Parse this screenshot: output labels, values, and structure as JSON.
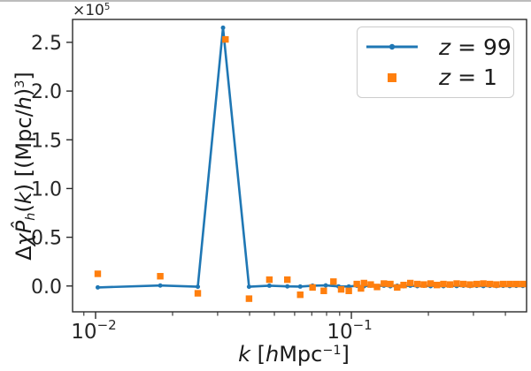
{
  "figure": {
    "offset_text": "×10⁵",
    "xlabel_text": "k [hMpc⁻¹]",
    "ylabel_text": "ΔχP̂h(k) [(Mpc/h)³]"
  },
  "chart_data": {
    "type": "line",
    "title": "",
    "xscale": "log",
    "xlabel": "k [hMpc⁻¹]",
    "ylabel": "ΔχP̂h(k) [(Mpc/h)³]",
    "offset": "×10⁵",
    "xlim": [
      0.00813,
      0.484
    ],
    "ylim": [
      -26500,
      273500
    ],
    "grid": false,
    "legend_position": "upper right",
    "colors": {
      "z99": "#1f77b4",
      "z1": "#ff7f0e",
      "spine": "#2b2b2b",
      "tick_text": "#262626"
    },
    "yticks": {
      "values": [
        0,
        50000,
        100000,
        150000,
        200000,
        250000
      ],
      "labels": [
        "0.0",
        "0.5",
        "1.0",
        "1.5",
        "2.0",
        "2.5"
      ]
    },
    "xticks": {
      "major": [
        {
          "value": 0.01,
          "base": "10",
          "exp": "−2"
        },
        {
          "value": 0.1,
          "base": "10",
          "exp": "−1"
        }
      ],
      "minor": [
        0.009,
        0.02,
        0.03,
        0.04,
        0.05,
        0.06,
        0.07,
        0.08,
        0.09,
        0.2,
        0.3,
        0.4
      ]
    },
    "ylabel_parts": [
      {
        "t": "Δ",
        "s": "n"
      },
      {
        "t": "χ",
        "s": "i"
      },
      {
        "t": "P̂",
        "s": "i"
      },
      {
        "t": "h",
        "s": "i sub"
      },
      {
        "t": "(",
        "s": "n"
      },
      {
        "t": "k",
        "s": "i"
      },
      {
        "t": ") [(Mpc/",
        "s": "n"
      },
      {
        "t": "h",
        "s": "i"
      },
      {
        "t": ")",
        "s": "n"
      },
      {
        "t": "3",
        "s": "sup"
      },
      {
        "t": "]",
        "s": "n"
      }
    ],
    "xlabel_parts": [
      {
        "t": "k",
        "s": "i"
      },
      {
        "t": " [",
        "s": "n"
      },
      {
        "t": "h",
        "s": "i"
      },
      {
        "t": "Mpc",
        "s": "n"
      },
      {
        "t": "−1",
        "s": "sup"
      },
      {
        "t": "]",
        "s": "n"
      }
    ],
    "offset_parts": [
      {
        "t": "×10",
        "s": "n"
      },
      {
        "t": "5",
        "s": "sup"
      }
    ],
    "legend": {
      "entries": [
        {
          "var": "z",
          "rest": " = 99",
          "series": "z99"
        },
        {
          "var": "z",
          "rest": " = 1",
          "series": "z1"
        }
      ]
    },
    "series": [
      {
        "name": "z = 99",
        "color": "#1f77b4",
        "marker": "dot",
        "line": true,
        "points": [
          [
            0.0102,
            -1500
          ],
          [
            0.0179,
            500
          ],
          [
            0.0251,
            -800
          ],
          [
            0.0315,
            265000
          ],
          [
            0.0398,
            -800
          ],
          [
            0.0478,
            300
          ],
          [
            0.0562,
            -400
          ],
          [
            0.0631,
            -600
          ],
          [
            0.0705,
            300
          ],
          [
            0.0794,
            600
          ],
          [
            0.0891,
            -400
          ],
          [
            0.0977,
            -500
          ],
          [
            0.105,
            200
          ],
          [
            0.112,
            -300
          ],
          [
            0.119,
            400
          ],
          [
            0.126,
            -200
          ],
          [
            0.134,
            300
          ],
          [
            0.142,
            -300
          ],
          [
            0.151,
            200
          ],
          [
            0.16,
            -200
          ],
          [
            0.17,
            300
          ],
          [
            0.181,
            -200
          ],
          [
            0.192,
            200
          ],
          [
            0.204,
            -200
          ],
          [
            0.216,
            200
          ],
          [
            0.229,
            -200
          ],
          [
            0.243,
            200
          ],
          [
            0.258,
            -100
          ],
          [
            0.274,
            200
          ],
          [
            0.291,
            -100
          ],
          [
            0.309,
            100
          ],
          [
            0.328,
            -100
          ],
          [
            0.348,
            100
          ],
          [
            0.369,
            -100
          ],
          [
            0.392,
            100
          ],
          [
            0.416,
            -100
          ],
          [
            0.441,
            100
          ],
          [
            0.468,
            0
          ]
        ]
      },
      {
        "name": "z = 1",
        "color": "#ff7f0e",
        "marker": "square",
        "line": false,
        "points": [
          [
            0.0102,
            12500
          ],
          [
            0.0179,
            10000
          ],
          [
            0.0251,
            -7500
          ],
          [
            0.0322,
            253000
          ],
          [
            0.0398,
            -13000
          ],
          [
            0.0478,
            6500
          ],
          [
            0.0562,
            6500
          ],
          [
            0.0631,
            -9000
          ],
          [
            0.0705,
            -1500
          ],
          [
            0.078,
            -5000
          ],
          [
            0.0851,
            4500
          ],
          [
            0.0912,
            -3500
          ],
          [
            0.0977,
            -5000
          ],
          [
            0.105,
            2000
          ],
          [
            0.109,
            -2500
          ],
          [
            0.112,
            3000
          ],
          [
            0.119,
            1500
          ],
          [
            0.126,
            -1000
          ],
          [
            0.134,
            2500
          ],
          [
            0.142,
            2000
          ],
          [
            0.151,
            -1500
          ],
          [
            0.16,
            1000
          ],
          [
            0.17,
            3000
          ],
          [
            0.181,
            2000
          ],
          [
            0.192,
            1500
          ],
          [
            0.204,
            2500
          ],
          [
            0.216,
            1000
          ],
          [
            0.229,
            2000
          ],
          [
            0.243,
            1500
          ],
          [
            0.258,
            2500
          ],
          [
            0.274,
            2000
          ],
          [
            0.291,
            1500
          ],
          [
            0.309,
            2000
          ],
          [
            0.328,
            2500
          ],
          [
            0.348,
            2000
          ],
          [
            0.369,
            1500
          ],
          [
            0.392,
            2000
          ],
          [
            0.416,
            2000
          ],
          [
            0.441,
            2000
          ],
          [
            0.468,
            2000
          ]
        ]
      }
    ]
  }
}
